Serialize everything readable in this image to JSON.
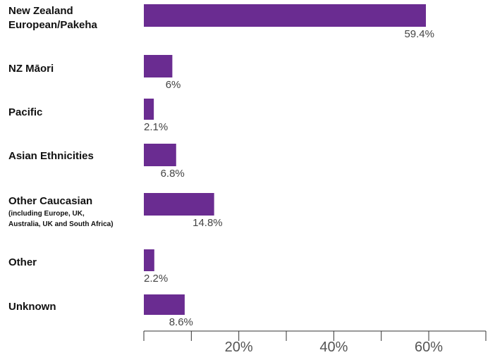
{
  "chart_data": {
    "type": "bar",
    "orientation": "horizontal",
    "categories": [
      {
        "title": "New Zealand European/Pakeha",
        "lines": [
          "New Zealand",
          "European/Pakeha"
        ],
        "sub": []
      },
      {
        "title": "NZ Māori",
        "lines": [
          "NZ Māori"
        ],
        "sub": []
      },
      {
        "title": "Pacific",
        "lines": [
          "Pacific"
        ],
        "sub": []
      },
      {
        "title": "Asian Ethnicities",
        "lines": [
          "Asian Ethnicities"
        ],
        "sub": []
      },
      {
        "title": "Other Caucasian",
        "lines": [
          "Other Caucasian"
        ],
        "sub": [
          "(including Europe, UK,",
          "Australia, UK and South Africa)"
        ]
      },
      {
        "title": "Other",
        "lines": [
          "Other"
        ],
        "sub": []
      },
      {
        "title": "Unknown",
        "lines": [
          "Unknown"
        ],
        "sub": []
      }
    ],
    "values": [
      59.4,
      6,
      2.1,
      6.8,
      14.8,
      2.2,
      8.6
    ],
    "value_labels": [
      "59.4%",
      "6%",
      "2.1%",
      "6.8%",
      "14.8%",
      "2.2%",
      "8.6%"
    ],
    "xlim": [
      0,
      60
    ],
    "xticks": [
      10,
      20,
      30,
      40,
      50,
      60
    ],
    "xtick_labels": [
      "",
      "20%",
      "",
      "40%",
      "",
      "60%"
    ],
    "title": "",
    "xlabel": "",
    "ylabel": "",
    "grid": false,
    "legend": "none",
    "bar_color": "#6a2c91"
  }
}
